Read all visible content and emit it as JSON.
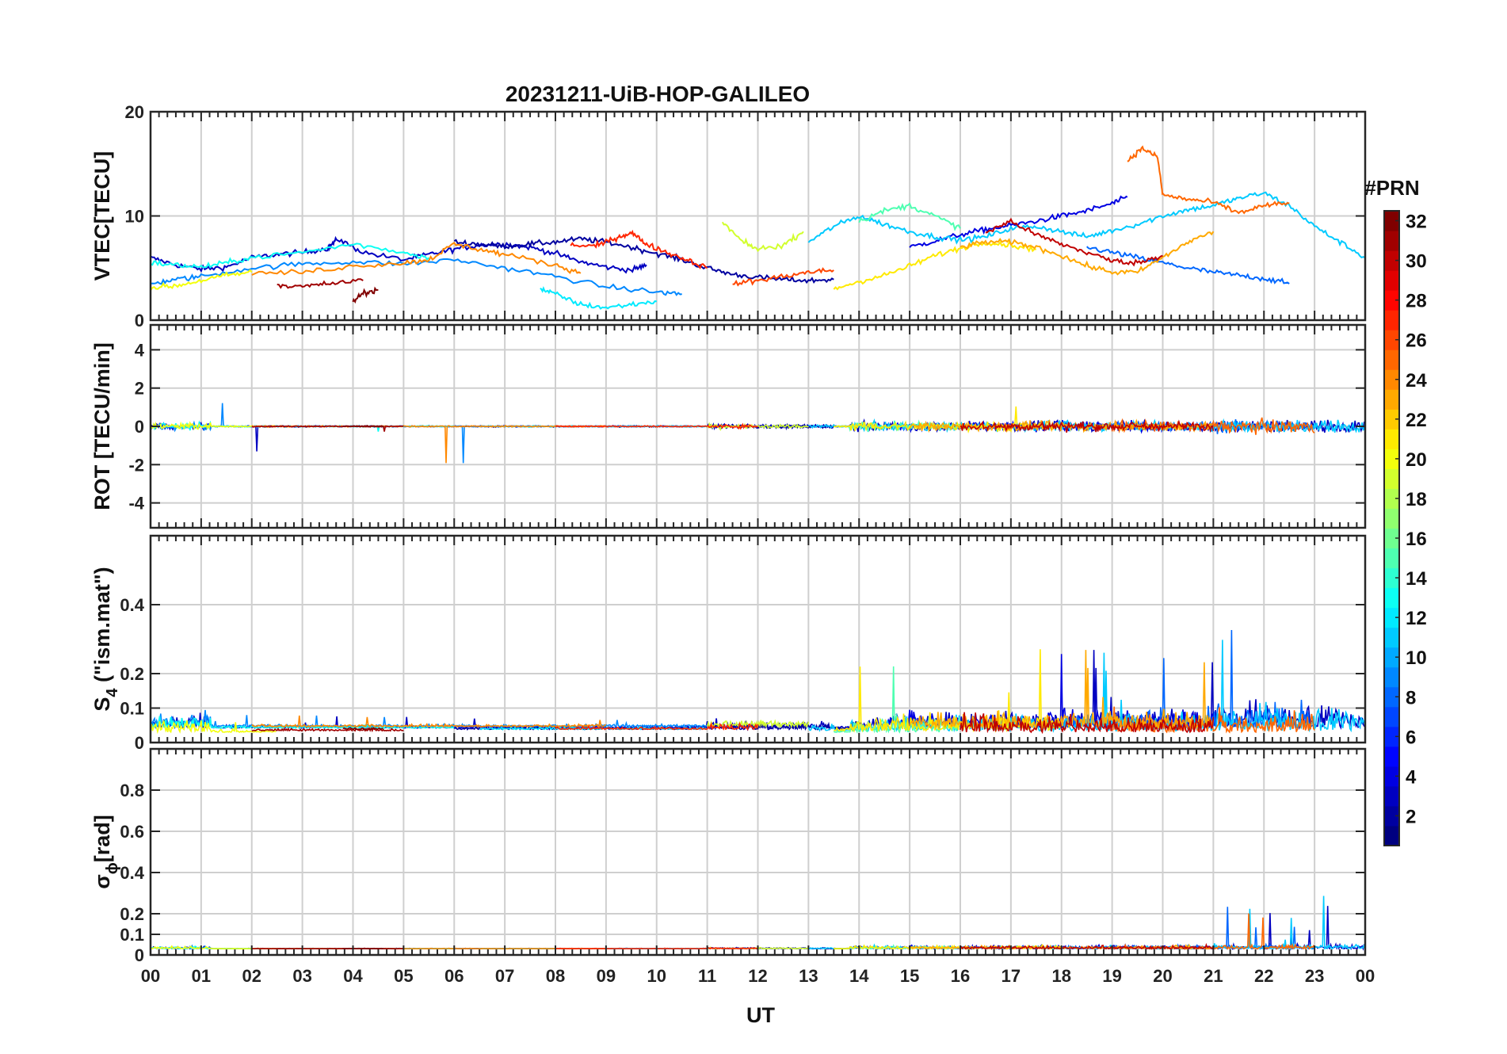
{
  "chart_data": {
    "type": "line",
    "title": "20231211-UiB-HOP-GALILEO",
    "xlabel": "UT",
    "xlim": [
      0,
      24
    ],
    "x_tick_labels": [
      "00",
      "01",
      "02",
      "03",
      "04",
      "05",
      "06",
      "07",
      "08",
      "09",
      "10",
      "11",
      "12",
      "13",
      "14",
      "15",
      "16",
      "17",
      "18",
      "19",
      "20",
      "21",
      "22",
      "23",
      "00"
    ],
    "colorbar": {
      "label": "#PRN",
      "clim": [
        1,
        32
      ],
      "ticks": [
        2,
        4,
        6,
        8,
        10,
        12,
        14,
        16,
        18,
        20,
        22,
        24,
        26,
        28,
        30,
        32
      ],
      "colormap": "jet"
    },
    "panels": [
      {
        "id": "vtec",
        "ylabel": "VTEC[TECU]",
        "ylim": [
          0,
          20
        ],
        "yticks": [
          0,
          10,
          20
        ],
        "series": [
          {
            "prn": 3,
            "x": [
              0,
              0.5,
              1,
              1.5,
              2,
              2.5,
              3,
              3.5,
              3.7,
              4.2,
              5,
              5.5,
              6,
              6.5,
              7,
              7.5,
              8,
              8.5,
              9,
              9.5,
              9.8
            ],
            "y": [
              6,
              5.3,
              4.9,
              5.1,
              6,
              6.3,
              6.5,
              6.9,
              7.8,
              6.5,
              5.8,
              6.3,
              6.8,
              7.2,
              7.3,
              7,
              6.4,
              5.6,
              5.1,
              4.8,
              5.3
            ]
          },
          {
            "prn": 2,
            "x": [
              6,
              6.5,
              7,
              7.5,
              8,
              8.5,
              9,
              9.5,
              10,
              10.5,
              11,
              11.5,
              12,
              12.5,
              13,
              13.5
            ],
            "y": [
              7.5,
              7.3,
              7.1,
              7.3,
              7.5,
              7.8,
              7.5,
              7,
              6.4,
              5.8,
              5,
              4.4,
              4.1,
              3.9,
              3.8,
              3.9
            ]
          },
          {
            "prn": 4,
            "x": [
              15,
              15.5,
              16,
              16.5,
              17,
              17.5,
              18,
              18.5,
              19,
              19.3
            ],
            "y": [
              7,
              7.6,
              8.2,
              8.7,
              9.1,
              9.5,
              10,
              10.5,
              11.2,
              11.8
            ]
          },
          {
            "prn": 8,
            "x": [
              18.5,
              19,
              19.5,
              20,
              20.5,
              21,
              21.5,
              22,
              22.5
            ],
            "y": [
              7,
              6.5,
              6,
              5.5,
              5,
              4.6,
              4.3,
              4,
              3.5
            ]
          },
          {
            "prn": 9,
            "x": [
              0,
              0.5,
              1,
              2,
              3,
              4,
              5,
              6,
              7,
              8,
              9,
              10,
              10.5
            ],
            "y": [
              3.5,
              3.9,
              4.2,
              5,
              5.4,
              5.6,
              5.4,
              5.8,
              5,
              4.2,
              3.2,
              2.7,
              2.5
            ]
          },
          {
            "prn": 11,
            "x": [
              13,
              13.5,
              14,
              14.5,
              15,
              15.5,
              16,
              16.5,
              17,
              17.5,
              18,
              18.5,
              19,
              19.5,
              20,
              20.5,
              21,
              21.5,
              22,
              22.5,
              23,
              23.5,
              24
            ],
            "y": [
              7.5,
              9,
              10,
              9.2,
              8.5,
              8,
              7.7,
              8,
              8.8,
              9,
              8.5,
              8,
              8.6,
              9.2,
              10,
              10.6,
              11,
              11.7,
              12.2,
              11,
              9,
              7.5,
              6
            ]
          },
          {
            "prn": 12,
            "x": [
              7.7,
              8,
              8.5,
              9,
              9.5,
              10
            ],
            "y": [
              3,
              2.5,
              1.5,
              1.2,
              1.5,
              1.8
            ]
          },
          {
            "prn": 13,
            "x": [
              0,
              0.5,
              1,
              1.5,
              2,
              3,
              4,
              5,
              5.5
            ],
            "y": [
              5.5,
              5.3,
              5.1,
              5.5,
              6,
              6.5,
              7.3,
              6.5,
              6
            ]
          },
          {
            "prn": 15,
            "x": [
              14,
              14.5,
              15,
              15.5,
              16
            ],
            "y": [
              9.5,
              10.5,
              11,
              10,
              8.8
            ]
          },
          {
            "prn": 19,
            "x": [
              11.3,
              11.7,
              12,
              12.5,
              12.9
            ],
            "y": [
              9.4,
              7.5,
              6.8,
              7.2,
              8.5
            ]
          },
          {
            "prn": 20,
            "x": [
              0,
              0.5,
              1,
              1.5,
              2
            ],
            "y": [
              3.1,
              3.3,
              3.8,
              4.3,
              4.6
            ]
          },
          {
            "prn": 21,
            "x": [
              13.5,
              14,
              14.5,
              15,
              15.5,
              16,
              16.5,
              17,
              17.5
            ],
            "y": [
              3,
              3.7,
              4.3,
              5.2,
              6.2,
              6.9,
              7.5,
              7.2,
              6.8
            ]
          },
          {
            "prn": 24,
            "x": [
              2,
              3,
              4,
              5,
              5.5,
              6,
              6.5,
              7,
              8,
              8.5
            ],
            "y": [
              4.5,
              4.6,
              5.2,
              5.5,
              5.8,
              7.3,
              6.8,
              6.3,
              5.3,
              4.5
            ]
          },
          {
            "prn": 25,
            "x": [
              19.3,
              19.6,
              19.9,
              20,
              20.5,
              21,
              21.5,
              22,
              22.5
            ],
            "y": [
              15.3,
              16.5,
              15.6,
              12,
              11.6,
              11.3,
              10.3,
              11,
              11.2
            ]
          },
          {
            "prn": 23,
            "x": [
              16,
              16.5,
              17,
              17.5,
              18,
              18.5,
              19,
              19.5,
              20,
              20.5,
              21
            ],
            "y": [
              7,
              7.5,
              7.5,
              7,
              6.2,
              5.2,
              4.6,
              4.6,
              6,
              7.5,
              8.5
            ]
          },
          {
            "prn": 27,
            "x": [
              8.3,
              8.8,
              9.2,
              9.5,
              9.8,
              10.2,
              10.6,
              11
            ],
            "y": [
              7.2,
              7.1,
              7.9,
              8.4,
              7.3,
              6.5,
              5.8,
              5
            ]
          },
          {
            "prn": 26,
            "x": [
              11.5,
              12,
              12.5,
              13,
              13.5
            ],
            "y": [
              3.5,
              3.8,
              4.2,
              4.6,
              4.8
            ]
          },
          {
            "prn": 30,
            "x": [
              16.5,
              17,
              17.5,
              18,
              18.5,
              19,
              19.5,
              20
            ],
            "y": [
              8.4,
              9.5,
              8.2,
              7.3,
              6.5,
              5.7,
              5.5,
              6.2
            ]
          },
          {
            "prn": 31,
            "x": [
              2.5,
              3,
              3.5,
              4.2
            ],
            "y": [
              3.4,
              3.2,
              3.5,
              3.8
            ]
          },
          {
            "prn": 32,
            "x": [
              4,
              4.2,
              4.5
            ],
            "y": [
              1.8,
              2.6,
              2.9
            ]
          }
        ]
      },
      {
        "id": "rot",
        "ylabel": "ROT [TECU/min]",
        "ylim": [
          -5.3,
          5.3
        ],
        "yticks": [
          -4,
          -2,
          0,
          2,
          4
        ]
      },
      {
        "id": "s4",
        "ylabel": "S",
        "ylabel_sub": "4",
        "ylabel_rest": " (\"ism.mat\")",
        "ylim": [
          0,
          0.6
        ],
        "yticks": [
          0,
          0.1,
          0.2,
          0.4
        ],
        "ytick_labels": [
          "0",
          "0.1",
          "0.2",
          "0.4"
        ]
      },
      {
        "id": "sigma",
        "ylabel": "σ",
        "ylabel_sub": "ϕ",
        "ylabel_rest": "[rad]",
        "ylim": [
          0,
          1
        ],
        "yticks": [
          0,
          0.1,
          0.2,
          0.4,
          0.6,
          0.8
        ],
        "ytick_labels": [
          "0",
          "0.1",
          "0.2",
          "0.4",
          "0.6",
          "0.8"
        ]
      }
    ]
  }
}
